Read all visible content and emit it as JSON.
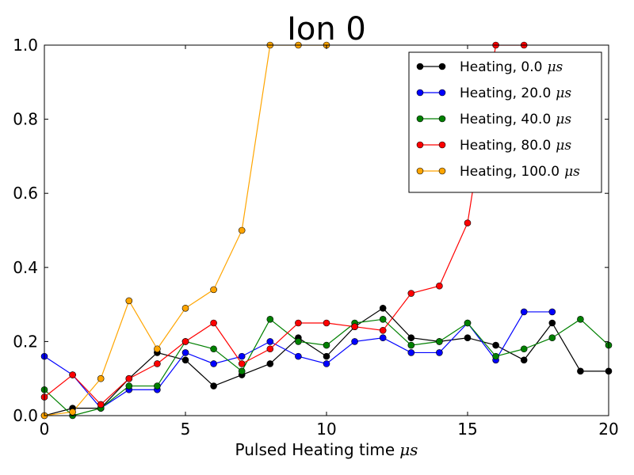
{
  "chart_data": {
    "type": "line",
    "title": "Ion 0",
    "xlabel": "Pulsed Heating time",
    "xlabel_unit": "μs",
    "ylabel": "",
    "xlim": [
      0,
      20
    ],
    "ylim": [
      0,
      1.0
    ],
    "x_ticks": [
      0,
      5,
      10,
      15,
      20
    ],
    "x_tick_labels": [
      "0",
      "5",
      "10",
      "15",
      "20"
    ],
    "y_ticks": [
      0,
      0.2,
      0.4,
      0.6,
      0.8,
      1.0
    ],
    "y_tick_labels": [
      "0.0",
      "0.2",
      "0.4",
      "0.6",
      "0.8",
      "1.0"
    ],
    "grid": false,
    "legend_position": "top-right",
    "series": [
      {
        "name": "Heating, 0.0",
        "unit": "μs",
        "color": "#000000",
        "x": [
          0,
          1,
          2,
          3,
          4,
          5,
          6,
          7,
          8,
          9,
          10,
          11,
          12,
          13,
          14,
          15,
          16,
          17,
          18,
          19,
          20
        ],
        "y": [
          0.0,
          0.02,
          0.02,
          0.1,
          0.17,
          0.15,
          0.08,
          0.11,
          0.14,
          0.21,
          0.16,
          0.24,
          0.29,
          0.21,
          0.2,
          0.21,
          0.19,
          0.15,
          0.25,
          0.12,
          0.12
        ]
      },
      {
        "name": "Heating, 20.0",
        "unit": "μs",
        "color": "#0000ff",
        "x": [
          0,
          1,
          2,
          3,
          4,
          5,
          6,
          7,
          8,
          9,
          10,
          11,
          12,
          13,
          14,
          15,
          16,
          17,
          18
        ],
        "y": [
          0.16,
          0.11,
          0.02,
          0.07,
          0.07,
          0.17,
          0.14,
          0.16,
          0.2,
          0.16,
          0.14,
          0.2,
          0.21,
          0.17,
          0.17,
          0.25,
          0.15,
          0.28,
          0.28
        ]
      },
      {
        "name": "Heating, 40.0",
        "unit": "μs",
        "color": "#008000",
        "x": [
          0,
          1,
          2,
          3,
          4,
          5,
          6,
          7,
          8,
          9,
          10,
          11,
          12,
          13,
          14,
          15,
          16,
          17,
          18,
          19,
          20
        ],
        "y": [
          0.07,
          0.0,
          0.02,
          0.08,
          0.08,
          0.2,
          0.18,
          0.12,
          0.26,
          0.2,
          0.19,
          0.25,
          0.26,
          0.19,
          0.2,
          0.25,
          0.16,
          0.18,
          0.21,
          0.26,
          0.19
        ]
      },
      {
        "name": "Heating, 80.0",
        "unit": "μs",
        "color": "#ff0000",
        "x": [
          0,
          1,
          2,
          3,
          4,
          5,
          6,
          7,
          8,
          9,
          10,
          11,
          12,
          13,
          14,
          15,
          16,
          17
        ],
        "y": [
          0.05,
          0.11,
          0.03,
          0.1,
          0.14,
          0.2,
          0.25,
          0.14,
          0.18,
          0.25,
          0.25,
          0.24,
          0.23,
          0.33,
          0.35,
          0.52,
          1.0,
          1.0
        ]
      },
      {
        "name": "Heating, 100.0",
        "unit": "μs",
        "color": "#ffa500",
        "x": [
          0,
          1,
          2,
          3,
          4,
          5,
          6,
          7,
          8,
          9,
          10
        ],
        "y": [
          0.0,
          0.01,
          0.1,
          0.31,
          0.18,
          0.29,
          0.34,
          0.5,
          1.0,
          1.0,
          1.0
        ]
      }
    ]
  }
}
